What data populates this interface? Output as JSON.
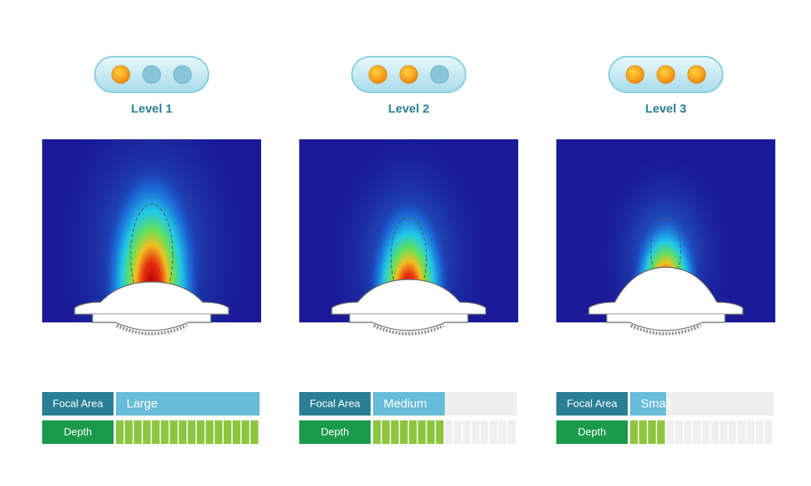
{
  "dots_total": 3,
  "depth_segments_total": 16,
  "panels": [
    {
      "level": "Level 1",
      "active_dots": 1,
      "focal_area": {
        "label": "Focal Area",
        "value": "Large",
        "fill_percent": 100
      },
      "depth": {
        "label": "Depth",
        "filled_segments": 16
      }
    },
    {
      "level": "Level 2",
      "active_dots": 2,
      "focal_area": {
        "label": "Focal Area",
        "value": "Medium",
        "fill_percent": 50
      },
      "depth": {
        "label": "Depth",
        "filled_segments": 8
      }
    },
    {
      "level": "Level 3",
      "active_dots": 3,
      "focal_area": {
        "label": "Focal Area",
        "value": "Small",
        "fill_percent": 25
      },
      "depth": {
        "label": "Depth",
        "filled_segments": 4
      }
    }
  ]
}
